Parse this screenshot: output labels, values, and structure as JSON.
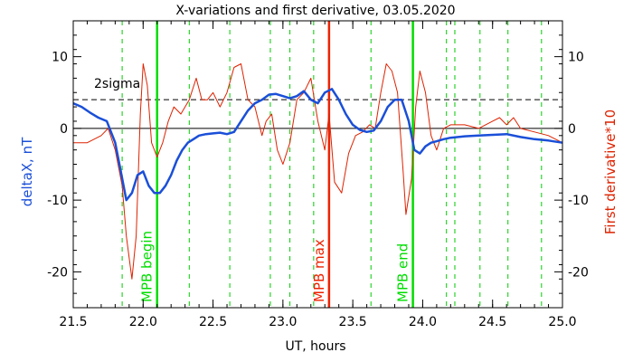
{
  "chart_data": {
    "type": "line",
    "title": "X-variations and first derivative, 03.05.2020",
    "xlabel": "UT, hours",
    "ylabel_left": "deltaX, nT",
    "ylabel_right": "First derivative*10",
    "xlim": [
      21.5,
      25.0
    ],
    "ylim": [
      -25,
      15
    ],
    "x_ticks": [
      "21.5",
      "22.0",
      "22.5",
      "23.0",
      "23.5",
      "24.0",
      "24.5",
      "25.0"
    ],
    "y_ticks_left": [
      "10",
      "0",
      "-10",
      "-20"
    ],
    "y_ticks_right": [
      "10",
      "0",
      "-10",
      "-20"
    ],
    "threshold": {
      "label": "2sigma",
      "value": 4
    },
    "markers": [
      {
        "name": "MPB begin",
        "x": 22.1,
        "color": "#00dd00"
      },
      {
        "name": "MPB max",
        "x": 23.33,
        "color": "#ee2200"
      },
      {
        "name": "MPB end",
        "x": 23.93,
        "color": "#00dd00"
      }
    ],
    "dashed_lines_x": [
      21.85,
      22.33,
      22.62,
      22.91,
      23.05,
      23.22,
      23.63,
      24.17,
      24.23,
      24.41,
      24.61,
      24.85
    ],
    "series": [
      {
        "color": "#1a4fd8",
        "axis": "left",
        "x": [
          21.5,
          21.56,
          21.62,
          21.68,
          21.74,
          21.8,
          21.84,
          21.88,
          21.92,
          21.96,
          22.0,
          22.04,
          22.08,
          22.12,
          22.16,
          22.2,
          22.24,
          22.28,
          22.32,
          22.36,
          22.4,
          22.45,
          22.5,
          22.55,
          22.6,
          22.65,
          22.7,
          22.75,
          22.8,
          22.85,
          22.9,
          22.95,
          23.0,
          23.05,
          23.1,
          23.15,
          23.2,
          23.25,
          23.3,
          23.35,
          23.4,
          23.45,
          23.5,
          23.55,
          23.6,
          23.65,
          23.7,
          23.75,
          23.8,
          23.85,
          23.9,
          23.94,
          23.98,
          24.02,
          24.06,
          24.1,
          24.15,
          24.2,
          24.3,
          24.4,
          24.5,
          24.6,
          24.7,
          24.8,
          24.9,
          25.0
        ],
        "values": [
          3.5,
          3.0,
          2.2,
          1.5,
          1.0,
          -2.0,
          -6.0,
          -10.0,
          -9.0,
          -6.5,
          -6.0,
          -8.0,
          -9.0,
          -9.0,
          -8.0,
          -6.5,
          -4.5,
          -3.0,
          -2.0,
          -1.5,
          -1.0,
          -0.8,
          -0.7,
          -0.6,
          -0.8,
          -0.5,
          1.0,
          2.5,
          3.5,
          4.0,
          4.7,
          4.8,
          4.5,
          4.2,
          4.5,
          5.2,
          4.0,
          3.5,
          5.0,
          5.5,
          4.0,
          2.0,
          0.5,
          -0.2,
          -0.5,
          -0.3,
          1.0,
          3.0,
          4.0,
          4.0,
          1.0,
          -3.0,
          -3.5,
          -2.5,
          -2.0,
          -1.8,
          -1.5,
          -1.3,
          -1.1,
          -1.0,
          -0.9,
          -0.8,
          -1.2,
          -1.5,
          -1.7,
          -2.0
        ]
      },
      {
        "color": "#dd2200",
        "axis": "right",
        "x": [
          21.5,
          21.6,
          21.7,
          21.75,
          21.8,
          21.85,
          21.88,
          21.92,
          21.95,
          21.98,
          22.0,
          22.03,
          22.06,
          22.1,
          22.14,
          22.18,
          22.22,
          22.27,
          22.33,
          22.38,
          22.42,
          22.46,
          22.5,
          22.55,
          22.6,
          22.65,
          22.7,
          22.75,
          22.8,
          22.85,
          22.88,
          22.92,
          22.96,
          23.0,
          23.05,
          23.1,
          23.15,
          23.2,
          23.25,
          23.3,
          23.33,
          23.37,
          23.42,
          23.47,
          23.52,
          23.57,
          23.62,
          23.66,
          23.7,
          23.74,
          23.78,
          23.82,
          23.86,
          23.88,
          23.92,
          23.95,
          23.98,
          24.02,
          24.06,
          24.1,
          24.15,
          24.2,
          24.3,
          24.4,
          24.5,
          24.55,
          24.6,
          24.65,
          24.7,
          24.8,
          24.9,
          25.0
        ],
        "values": [
          -2.0,
          -2.0,
          -1.0,
          0.0,
          -3.0,
          -8.0,
          -15.0,
          -21.0,
          -15.0,
          2.0,
          9.0,
          6.0,
          -2.0,
          -4.0,
          -2.0,
          1.0,
          3.0,
          2.0,
          4.0,
          7.0,
          4.0,
          4.0,
          5.0,
          3.0,
          5.0,
          8.5,
          9.0,
          4.0,
          3.0,
          -1.0,
          1.0,
          2.0,
          -3.0,
          -5.0,
          -2.0,
          4.0,
          5.0,
          7.0,
          1.0,
          -3.0,
          2.0,
          -7.5,
          -9.0,
          -3.5,
          -1.0,
          -0.5,
          0.5,
          0.0,
          5.0,
          9.0,
          8.0,
          5.0,
          -6.0,
          -12.0,
          -7.0,
          3.0,
          8.0,
          5.0,
          -1.0,
          -3.0,
          0.0,
          0.5,
          0.5,
          0.0,
          1.0,
          1.5,
          0.5,
          1.5,
          0.0,
          -0.5,
          -1.0,
          -2.0
        ]
      }
    ]
  }
}
